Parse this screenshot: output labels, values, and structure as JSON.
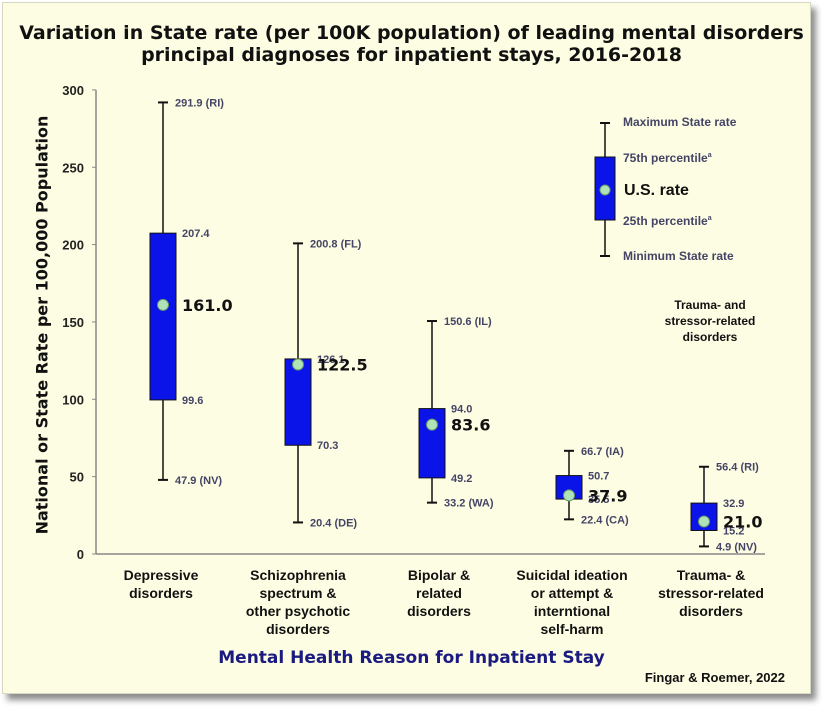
{
  "title_lines": [
    "Variation in State rate (per 100K population) of leading mental disorders",
    "principal diagnoses for inpatient stays, 2016-2018"
  ],
  "source": "Fingar & Roemer, 2022",
  "chart_data": {
    "type": "box",
    "ylabel": "National or State Rate per 100,000 Population",
    "xlabel": "Mental Health Reason for Inpatient Stay",
    "ylim": [
      0,
      300
    ],
    "yticks": [
      0,
      50,
      100,
      150,
      200,
      250,
      300
    ],
    "box_color": "#0a14e8",
    "marker_color": "#aee3b8",
    "categories": [
      {
        "label_lines": [
          "Depressive",
          "disorders"
        ],
        "min": 47.9,
        "min_label": "47.9 (NV)",
        "q1": 99.6,
        "q1_label": "99.6",
        "q3": 207.4,
        "q3_label": "207.4",
        "max": 291.9,
        "max_label": "291.9 (RI)",
        "us": 161.0,
        "us_label": "161.0"
      },
      {
        "label_lines": [
          "Schizophrenia",
          "spectrum &",
          "other psychotic",
          "disorders"
        ],
        "min": 20.4,
        "min_label": "20.4 (DE)",
        "q1": 70.3,
        "q1_label": "70.3",
        "q3": 126.1,
        "q3_label": "126.1",
        "max": 200.8,
        "max_label": "200.8 (FL)",
        "us": 122.5,
        "us_label": "122.5"
      },
      {
        "label_lines": [
          "Bipolar &",
          "related",
          "disorders"
        ],
        "min": 33.2,
        "min_label": "33.2 (WA)",
        "q1": 49.2,
        "q1_label": "49.2",
        "q3": 94.0,
        "q3_label": "94.0",
        "max": 150.6,
        "max_label": "150.6 (IL)",
        "us": 83.6,
        "us_label": "83.6"
      },
      {
        "label_lines": [
          "Suicidal ideation",
          "or attempt &",
          "interntional",
          "self-harm"
        ],
        "min": 22.4,
        "min_label": "22.4 (CA)",
        "q1": 35.5,
        "q1_label": "35.5",
        "q3": 50.7,
        "q3_label": "50.7",
        "max": 66.7,
        "max_label": "66.7 (IA)",
        "us": 37.9,
        "us_label": "37.9"
      },
      {
        "label_lines": [
          "Trauma- &",
          "stressor-related",
          "disorders"
        ],
        "min": 4.9,
        "min_label": "4.9 (NV)",
        "q1": 15.2,
        "q1_label": "15.2",
        "q3": 32.9,
        "q3_label": "32.9",
        "max": 56.4,
        "max_label": "56.4 (RI)",
        "us": 21.0,
        "us_label": "21.0"
      }
    ],
    "legend": {
      "max_label": "Maximum State rate",
      "q3_label": "75th percentile",
      "q3_sup": "a",
      "us_label": "U.S. rate",
      "q1_label": "25th percentile",
      "q1_sup": "a",
      "min_label": "Minimum State rate",
      "title_lines": [
        "Trauma- and",
        "stressor-related",
        "disorders"
      ]
    }
  }
}
